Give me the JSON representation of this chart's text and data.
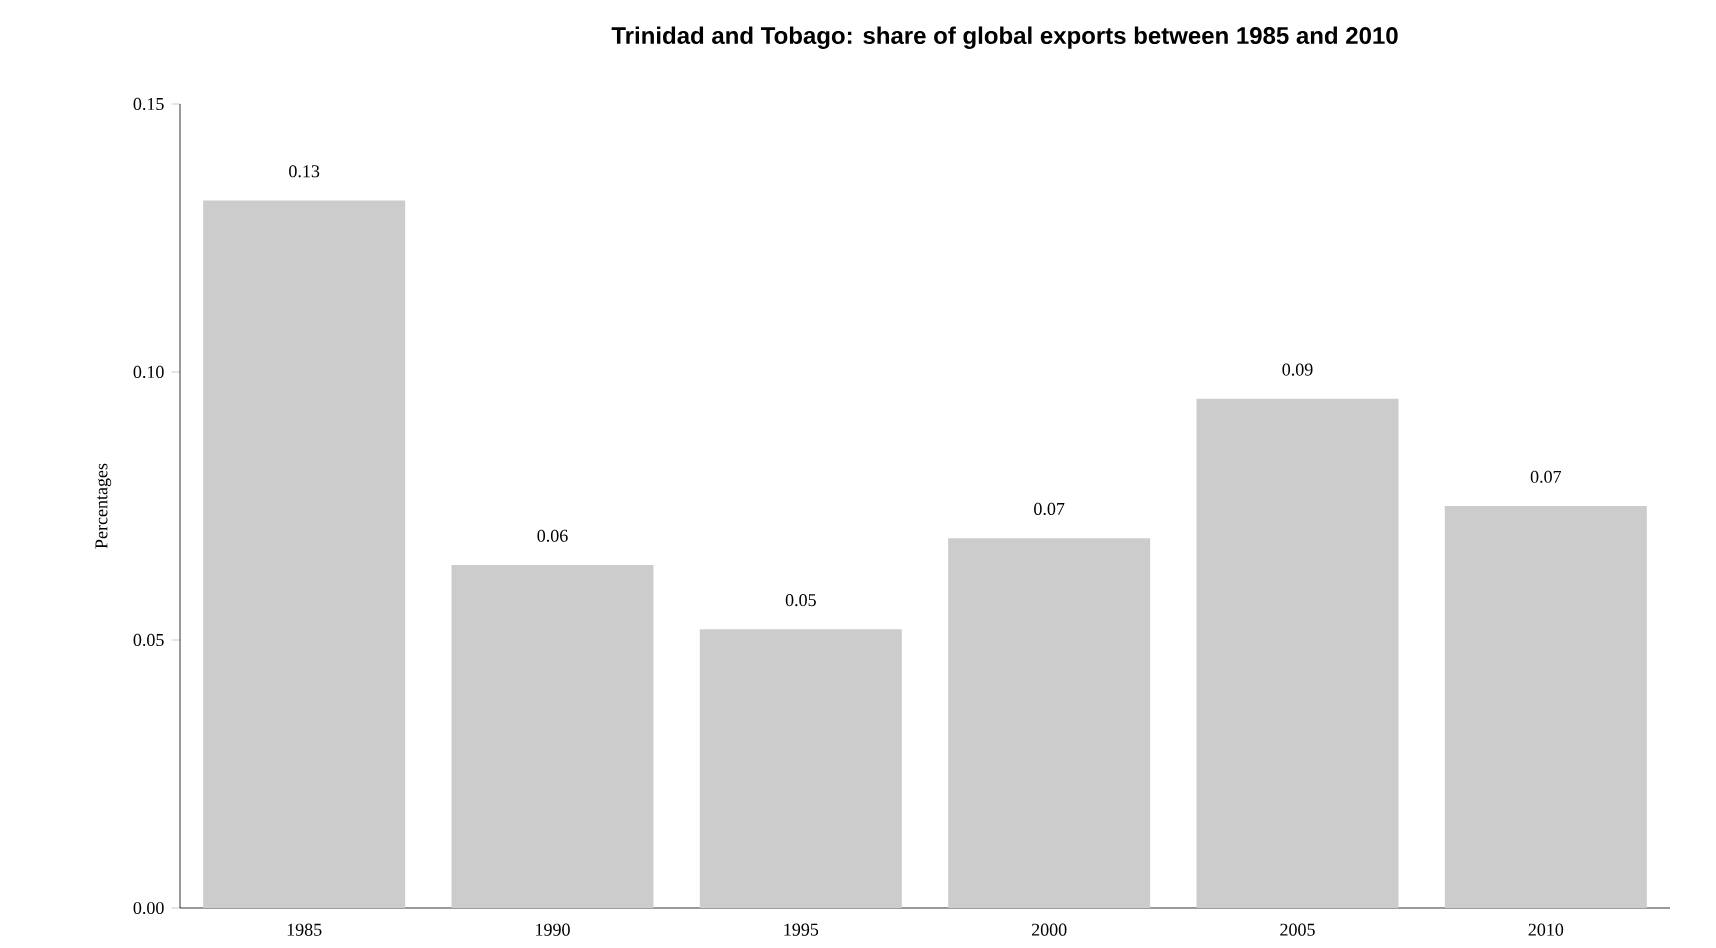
{
  "chart_data": {
    "type": "bar",
    "title": "Trinidad and Tobago: share of global exports between 1985 and 2010",
    "ylabel": "Percentages",
    "categories": [
      "1985",
      "1990",
      "1995",
      "2000",
      "2005",
      "2010"
    ],
    "values": [
      0.132,
      0.064,
      0.052,
      0.069,
      0.095,
      0.075
    ],
    "value_labels": [
      "0.13",
      "0.06",
      "0.05",
      "0.07",
      "0.09",
      "0.07"
    ],
    "color": "#cccccd",
    "ylim": [
      0,
      0.15
    ],
    "yticks": [
      {
        "value": 0,
        "label": "0.00"
      },
      {
        "value": 0.05,
        "label": "0.05"
      },
      {
        "value": 0.1,
        "label": "0.10"
      },
      {
        "value": 0.15,
        "label": "0.15"
      }
    ],
    "grid": false
  }
}
